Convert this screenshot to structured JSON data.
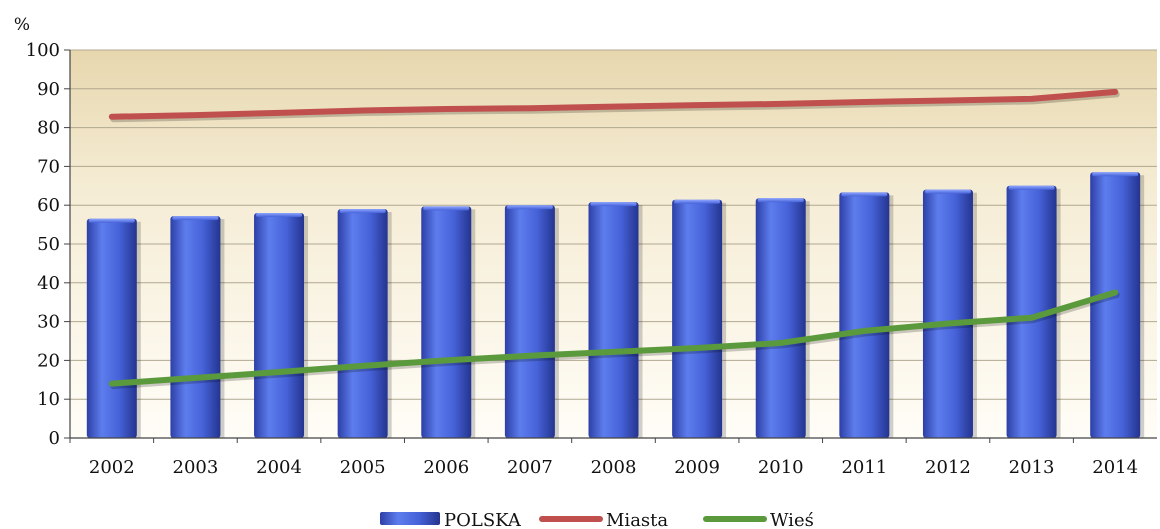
{
  "chart_data": {
    "type": "bar",
    "title": "",
    "ylabel": "%",
    "xlabel": "",
    "ylim": [
      0,
      100
    ],
    "yticks": [
      0,
      10,
      20,
      30,
      40,
      50,
      60,
      70,
      80,
      90,
      100
    ],
    "grid": true,
    "legend_position": "bottom",
    "categories": [
      "2002",
      "2003",
      "2004",
      "2005",
      "2006",
      "2007",
      "2008",
      "2009",
      "2010",
      "2011",
      "2012",
      "2013",
      "2014"
    ],
    "series": [
      {
        "name": "POLSKA",
        "type": "bar",
        "color": "#4f6ee0",
        "values": [
          56.5,
          57.2,
          58.0,
          59.0,
          59.7,
          60.0,
          60.8,
          61.4,
          61.8,
          63.3,
          64.0,
          65.0,
          68.5
        ]
      },
      {
        "name": "Miasta",
        "type": "line",
        "color": "#c0504d",
        "values": [
          82.8,
          83.2,
          83.8,
          84.4,
          84.8,
          85.0,
          85.4,
          85.8,
          86.1,
          86.6,
          87.0,
          87.4,
          89.2
        ]
      },
      {
        "name": "Wieś",
        "type": "line",
        "color": "#5b9a3c",
        "values": [
          14.0,
          15.5,
          17.0,
          18.6,
          20.0,
          21.2,
          22.2,
          23.2,
          24.5,
          27.6,
          29.5,
          31.0,
          37.5
        ]
      }
    ]
  }
}
